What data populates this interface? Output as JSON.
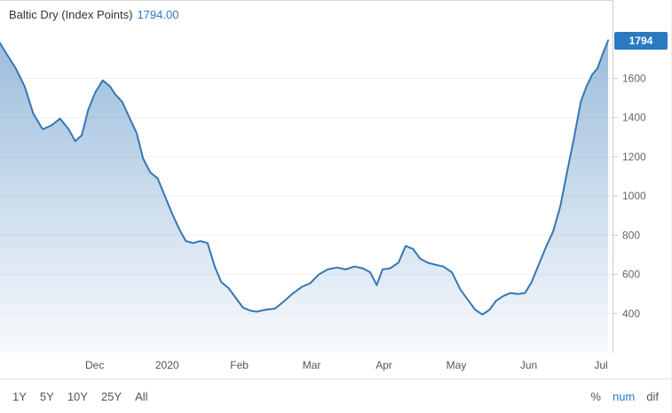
{
  "header": {
    "title": "Baltic Dry (Index Points)",
    "value": "1794.00"
  },
  "price_badge": "1794",
  "toolbar": {
    "ranges": [
      "1Y",
      "5Y",
      "10Y",
      "25Y",
      "All"
    ],
    "modes": [
      {
        "label": "%",
        "selected": false
      },
      {
        "label": "num",
        "selected": true
      },
      {
        "label": "dif",
        "selected": false
      }
    ]
  },
  "colors": {
    "line": "#3577b4",
    "area": "#4c87c0",
    "badge_bg": "#2b7ac0",
    "accent_blue": "#3176bd",
    "axis_text": "#666666",
    "grid": "#f0f0f0",
    "axis_line": "#cccccc"
  },
  "chart_data": {
    "type": "area",
    "title": "Baltic Dry (Index Points)",
    "latest_value": 1794.0,
    "legend": "none",
    "grid": "horizontal-faint",
    "x_unit": "months, 0 = Dec-2019 tick, 1 = Jan-2020, ... 7 = Jul-2020",
    "xlim": [
      -1.31,
      7.16
    ],
    "ylim": [
      200,
      2000
    ],
    "y_ticks": [
      400,
      600,
      800,
      1000,
      1200,
      1400,
      1600
    ],
    "x_ticks": [
      {
        "pos": 0,
        "label": "Dec"
      },
      {
        "pos": 1,
        "label": "2020"
      },
      {
        "pos": 2,
        "label": "Feb"
      },
      {
        "pos": 3,
        "label": "Mar"
      },
      {
        "pos": 4,
        "label": "Apr"
      },
      {
        "pos": 5,
        "label": "May"
      },
      {
        "pos": 6,
        "label": "Jun"
      },
      {
        "pos": 7,
        "label": "Jul"
      }
    ],
    "x": [
      -1.31,
      -1.21,
      -1.09,
      -0.97,
      -0.85,
      -0.72,
      -0.6,
      -0.48,
      -0.36,
      -0.27,
      -0.18,
      -0.09,
      0.01,
      0.11,
      0.21,
      0.28,
      0.38,
      0.48,
      0.58,
      0.67,
      0.77,
      0.87,
      0.97,
      1.07,
      1.17,
      1.26,
      1.36,
      1.46,
      1.56,
      1.66,
      1.75,
      1.85,
      1.95,
      2.05,
      2.15,
      2.24,
      2.37,
      2.49,
      2.61,
      2.73,
      2.86,
      2.98,
      3.1,
      3.22,
      3.35,
      3.47,
      3.59,
      3.71,
      3.81,
      3.9,
      3.98,
      4.08,
      4.2,
      4.3,
      4.4,
      4.5,
      4.6,
      4.7,
      4.82,
      4.94,
      5.06,
      5.16,
      5.26,
      5.36,
      5.46,
      5.55,
      5.65,
      5.75,
      5.85,
      5.95,
      6.04,
      6.14,
      6.24,
      6.34,
      6.44,
      6.53,
      6.63,
      6.72,
      6.8,
      6.88,
      6.95,
      7.02,
      7.1
    ],
    "values": [
      1780,
      1720,
      1650,
      1560,
      1420,
      1340,
      1360,
      1395,
      1340,
      1280,
      1310,
      1440,
      1530,
      1590,
      1560,
      1520,
      1480,
      1400,
      1320,
      1190,
      1120,
      1090,
      1000,
      910,
      830,
      770,
      760,
      770,
      760,
      640,
      560,
      530,
      480,
      430,
      415,
      410,
      420,
      425,
      460,
      500,
      535,
      555,
      600,
      625,
      635,
      625,
      640,
      630,
      610,
      545,
      625,
      630,
      660,
      745,
      730,
      680,
      660,
      650,
      640,
      610,
      520,
      470,
      420,
      395,
      420,
      465,
      490,
      505,
      500,
      505,
      560,
      650,
      740,
      820,
      950,
      1120,
      1300,
      1480,
      1560,
      1620,
      1650,
      1720,
      1794
    ]
  }
}
